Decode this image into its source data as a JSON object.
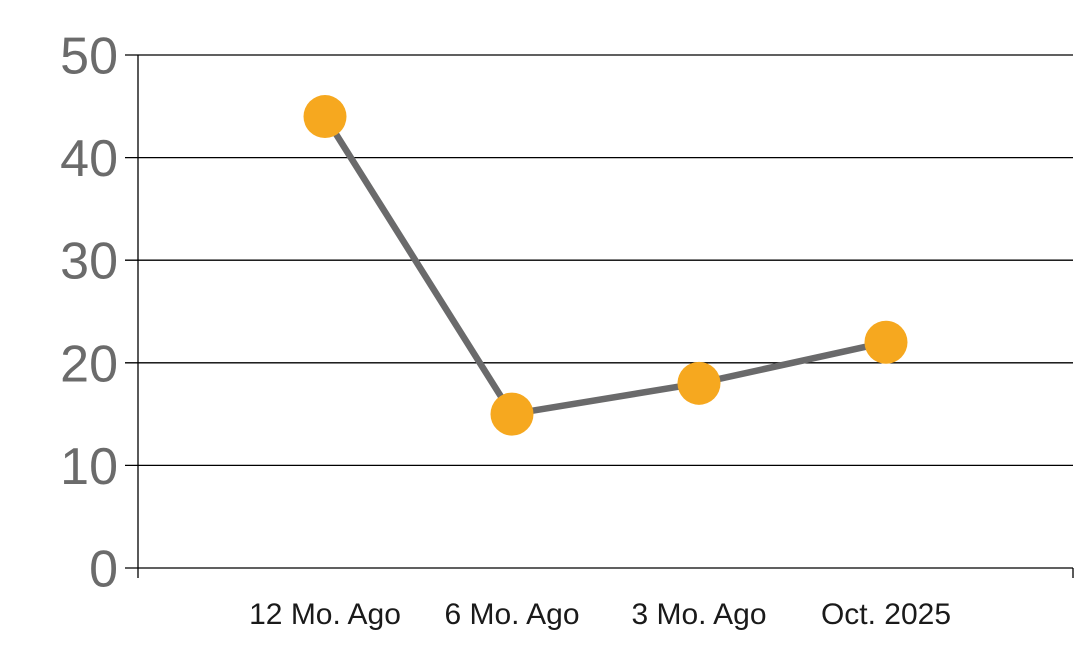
{
  "chart_data": {
    "type": "line",
    "categories": [
      "12 Mo. Ago",
      "6 Mo. Ago",
      "3 Mo. Ago",
      "Oct. 2025"
    ],
    "values": [
      44,
      15,
      18,
      22
    ],
    "title": "",
    "xlabel": "",
    "ylabel": "",
    "ylim": [
      0,
      50
    ],
    "yticks": [
      0,
      10,
      20,
      30,
      40,
      50
    ],
    "grid": true,
    "legend": false,
    "colors": {
      "marker": "#F6A81F",
      "line": "#6A6A6B",
      "y_tick_label": "#6B6B6B",
      "x_tick_label": "#1A1A1A",
      "gridline": "#000000",
      "axis": "#000000",
      "background": "#FFFFFF"
    }
  }
}
